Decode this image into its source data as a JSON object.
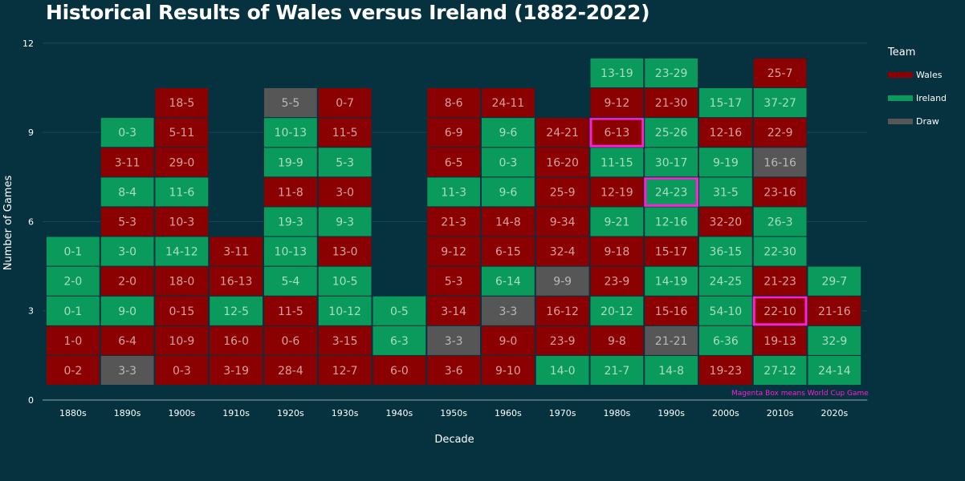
{
  "chart_data": {
    "type": "heatmap",
    "title": "Historical Results of Wales versus Ireland (1882-2022)",
    "xlabel": "Decade",
    "ylabel": "Number of Games",
    "ylim": [
      0,
      12
    ],
    "yticks": [
      0,
      3,
      6,
      9,
      12
    ],
    "categories": [
      "1880s",
      "1890s",
      "1900s",
      "1910s",
      "1920s",
      "1930s",
      "1940s",
      "1950s",
      "1960s",
      "1970s",
      "1980s",
      "1990s",
      "2000s",
      "2010s",
      "2020s"
    ],
    "colors": {
      "Wales": "#8b0000",
      "Ireland": "#0a9b5c",
      "Draw": "#565656",
      "world_cup": "#ff1fd6"
    },
    "legend": {
      "title": "Team",
      "entries": [
        "Wales",
        "Ireland",
        "Draw"
      ],
      "placement": "right"
    },
    "footnote": "Magenta Box means World Cup Game",
    "columns": [
      {
        "decade": "1880s",
        "games": [
          {
            "score": "0-2",
            "winner": "Wales"
          },
          {
            "score": "1-0",
            "winner": "Wales"
          },
          {
            "score": "0-1",
            "winner": "Ireland"
          },
          {
            "score": "2-0",
            "winner": "Ireland"
          },
          {
            "score": "0-1",
            "winner": "Ireland"
          }
        ]
      },
      {
        "decade": "1890s",
        "games": [
          {
            "score": "3-3",
            "winner": "Draw"
          },
          {
            "score": "6-4",
            "winner": "Wales"
          },
          {
            "score": "9-0",
            "winner": "Ireland"
          },
          {
            "score": "2-0",
            "winner": "Wales"
          },
          {
            "score": "3-0",
            "winner": "Ireland"
          },
          {
            "score": "5-3",
            "winner": "Wales"
          },
          {
            "score": "8-4",
            "winner": "Ireland"
          },
          {
            "score": "3-11",
            "winner": "Wales"
          },
          {
            "score": "0-3",
            "winner": "Ireland"
          }
        ]
      },
      {
        "decade": "1900s",
        "games": [
          {
            "score": "0-3",
            "winner": "Wales"
          },
          {
            "score": "10-9",
            "winner": "Wales"
          },
          {
            "score": "0-15",
            "winner": "Wales"
          },
          {
            "score": "18-0",
            "winner": "Wales"
          },
          {
            "score": "14-12",
            "winner": "Ireland"
          },
          {
            "score": "10-3",
            "winner": "Wales"
          },
          {
            "score": "11-6",
            "winner": "Ireland"
          },
          {
            "score": "29-0",
            "winner": "Wales"
          },
          {
            "score": "5-11",
            "winner": "Wales"
          },
          {
            "score": "18-5",
            "winner": "Wales"
          }
        ]
      },
      {
        "decade": "1910s",
        "games": [
          {
            "score": "3-19",
            "winner": "Wales"
          },
          {
            "score": "16-0",
            "winner": "Wales"
          },
          {
            "score": "12-5",
            "winner": "Ireland"
          },
          {
            "score": "16-13",
            "winner": "Wales"
          },
          {
            "score": "3-11",
            "winner": "Wales"
          }
        ]
      },
      {
        "decade": "1920s",
        "games": [
          {
            "score": "28-4",
            "winner": "Wales"
          },
          {
            "score": "0-6",
            "winner": "Wales"
          },
          {
            "score": "11-5",
            "winner": "Wales"
          },
          {
            "score": "5-4",
            "winner": "Ireland"
          },
          {
            "score": "10-13",
            "winner": "Ireland"
          },
          {
            "score": "19-3",
            "winner": "Ireland"
          },
          {
            "score": "11-8",
            "winner": "Wales"
          },
          {
            "score": "19-9",
            "winner": "Ireland"
          },
          {
            "score": "10-13",
            "winner": "Ireland"
          },
          {
            "score": "5-5",
            "winner": "Draw"
          }
        ]
      },
      {
        "decade": "1930s",
        "games": [
          {
            "score": "12-7",
            "winner": "Wales"
          },
          {
            "score": "3-15",
            "winner": "Wales"
          },
          {
            "score": "10-12",
            "winner": "Ireland"
          },
          {
            "score": "10-5",
            "winner": "Ireland"
          },
          {
            "score": "13-0",
            "winner": "Wales"
          },
          {
            "score": "9-3",
            "winner": "Ireland"
          },
          {
            "score": "3-0",
            "winner": "Wales"
          },
          {
            "score": "5-3",
            "winner": "Ireland"
          },
          {
            "score": "11-5",
            "winner": "Wales"
          },
          {
            "score": "0-7",
            "winner": "Wales"
          }
        ]
      },
      {
        "decade": "1940s",
        "games": [
          {
            "score": "6-0",
            "winner": "Wales"
          },
          {
            "score": "6-3",
            "winner": "Ireland"
          },
          {
            "score": "0-5",
            "winner": "Ireland"
          }
        ]
      },
      {
        "decade": "1950s",
        "games": [
          {
            "score": "3-6",
            "winner": "Wales"
          },
          {
            "score": "3-3",
            "winner": "Draw"
          },
          {
            "score": "3-14",
            "winner": "Wales"
          },
          {
            "score": "5-3",
            "winner": "Wales"
          },
          {
            "score": "9-12",
            "winner": "Wales"
          },
          {
            "score": "21-3",
            "winner": "Wales"
          },
          {
            "score": "11-3",
            "winner": "Ireland"
          },
          {
            "score": "6-5",
            "winner": "Wales"
          },
          {
            "score": "6-9",
            "winner": "Wales"
          },
          {
            "score": "8-6",
            "winner": "Wales"
          }
        ]
      },
      {
        "decade": "1960s",
        "games": [
          {
            "score": "9-10",
            "winner": "Wales"
          },
          {
            "score": "9-0",
            "winner": "Wales"
          },
          {
            "score": "3-3",
            "winner": "Draw"
          },
          {
            "score": "6-14",
            "winner": "Ireland"
          },
          {
            "score": "6-15",
            "winner": "Wales"
          },
          {
            "score": "14-8",
            "winner": "Wales"
          },
          {
            "score": "9-6",
            "winner": "Ireland"
          },
          {
            "score": "0-3",
            "winner": "Ireland"
          },
          {
            "score": "9-6",
            "winner": "Ireland"
          },
          {
            "score": "24-11",
            "winner": "Wales"
          }
        ]
      },
      {
        "decade": "1970s",
        "games": [
          {
            "score": "14-0",
            "winner": "Ireland"
          },
          {
            "score": "23-9",
            "winner": "Wales"
          },
          {
            "score": "16-12",
            "winner": "Wales"
          },
          {
            "score": "9-9",
            "winner": "Draw"
          },
          {
            "score": "32-4",
            "winner": "Wales"
          },
          {
            "score": "9-34",
            "winner": "Wales"
          },
          {
            "score": "25-9",
            "winner": "Wales"
          },
          {
            "score": "16-20",
            "winner": "Wales"
          },
          {
            "score": "24-21",
            "winner": "Wales"
          }
        ]
      },
      {
        "decade": "1980s",
        "games": [
          {
            "score": "21-7",
            "winner": "Ireland"
          },
          {
            "score": "9-8",
            "winner": "Wales"
          },
          {
            "score": "20-12",
            "winner": "Ireland"
          },
          {
            "score": "23-9",
            "winner": "Wales"
          },
          {
            "score": "9-18",
            "winner": "Wales"
          },
          {
            "score": "9-21",
            "winner": "Ireland"
          },
          {
            "score": "12-19",
            "winner": "Wales"
          },
          {
            "score": "11-15",
            "winner": "Ireland"
          },
          {
            "score": "6-13",
            "winner": "Wales",
            "world_cup": true
          },
          {
            "score": "9-12",
            "winner": "Wales"
          },
          {
            "score": "13-19",
            "winner": "Ireland"
          }
        ]
      },
      {
        "decade": "1990s",
        "games": [
          {
            "score": "14-8",
            "winner": "Ireland"
          },
          {
            "score": "21-21",
            "winner": "Draw"
          },
          {
            "score": "15-16",
            "winner": "Wales"
          },
          {
            "score": "14-19",
            "winner": "Ireland"
          },
          {
            "score": "15-17",
            "winner": "Wales"
          },
          {
            "score": "12-16",
            "winner": "Ireland"
          },
          {
            "score": "24-23",
            "winner": "Ireland",
            "world_cup": true
          },
          {
            "score": "30-17",
            "winner": "Ireland"
          },
          {
            "score": "25-26",
            "winner": "Ireland"
          },
          {
            "score": "21-30",
            "winner": "Wales"
          },
          {
            "score": "23-29",
            "winner": "Ireland"
          }
        ]
      },
      {
        "decade": "2000s",
        "games": [
          {
            "score": "19-23",
            "winner": "Wales"
          },
          {
            "score": "6-36",
            "winner": "Ireland"
          },
          {
            "score": "54-10",
            "winner": "Ireland"
          },
          {
            "score": "24-25",
            "winner": "Ireland"
          },
          {
            "score": "36-15",
            "winner": "Ireland"
          },
          {
            "score": "32-20",
            "winner": "Wales"
          },
          {
            "score": "31-5",
            "winner": "Ireland"
          },
          {
            "score": "9-19",
            "winner": "Ireland"
          },
          {
            "score": "12-16",
            "winner": "Wales"
          },
          {
            "score": "15-17",
            "winner": "Ireland"
          }
        ]
      },
      {
        "decade": "2010s",
        "games": [
          {
            "score": "27-12",
            "winner": "Ireland"
          },
          {
            "score": "19-13",
            "winner": "Wales"
          },
          {
            "score": "22-10",
            "winner": "Wales",
            "world_cup": true
          },
          {
            "score": "21-23",
            "winner": "Wales"
          },
          {
            "score": "22-30",
            "winner": "Ireland"
          },
          {
            "score": "26-3",
            "winner": "Ireland"
          },
          {
            "score": "23-16",
            "winner": "Wales"
          },
          {
            "score": "16-16",
            "winner": "Draw"
          },
          {
            "score": "22-9",
            "winner": "Wales"
          },
          {
            "score": "37-27",
            "winner": "Ireland"
          },
          {
            "score": "25-7",
            "winner": "Wales"
          }
        ]
      },
      {
        "decade": "2020s",
        "games": [
          {
            "score": "24-14",
            "winner": "Ireland"
          },
          {
            "score": "32-9",
            "winner": "Ireland"
          },
          {
            "score": "21-16",
            "winner": "Wales"
          },
          {
            "score": "29-7",
            "winner": "Ireland"
          }
        ]
      }
    ]
  }
}
